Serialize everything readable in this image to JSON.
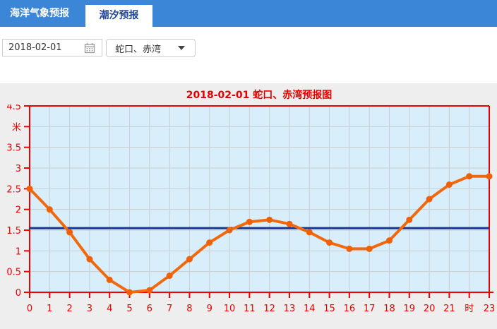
{
  "tabs": [
    {
      "label": "海洋气象预报",
      "active": false
    },
    {
      "label": "潮汐预报",
      "active": true
    }
  ],
  "controls": {
    "date_value": "2018-02-01",
    "station_value": "蛇口、赤湾"
  },
  "chart_data": {
    "type": "line",
    "title": "2018-02-01 蛇口、赤湾预报图",
    "xlabel": "时",
    "ylabel": "米",
    "x": [
      0,
      1,
      2,
      3,
      4,
      5,
      6,
      7,
      8,
      9,
      10,
      11,
      12,
      13,
      14,
      15,
      16,
      17,
      18,
      19,
      20,
      21,
      22,
      23
    ],
    "values": [
      2.5,
      2.0,
      1.45,
      0.8,
      0.3,
      0.0,
      0.05,
      0.4,
      0.8,
      1.2,
      1.5,
      1.7,
      1.75,
      1.65,
      1.45,
      1.2,
      1.05,
      1.05,
      1.25,
      1.75,
      2.25,
      2.6,
      2.8,
      2.8
    ],
    "x_tick_labels": [
      "0",
      "1",
      "2",
      "3",
      "4",
      "5",
      "6",
      "7",
      "8",
      "9",
      "10",
      "11",
      "12",
      "13",
      "14",
      "15",
      "16",
      "17",
      "18",
      "19",
      "20",
      "21",
      "时",
      "23"
    ],
    "y_tick_values": [
      0,
      0.5,
      1,
      1.5,
      2,
      2.5,
      3,
      3.5,
      4,
      4.5
    ],
    "y_tick_labels": [
      "0",
      "0.5",
      "1",
      "1.5",
      "2",
      "2.5",
      "3",
      "3.5",
      "米",
      "4.5"
    ],
    "ylim": [
      0,
      4.5
    ],
    "xlim": [
      0,
      23
    ],
    "grid": true,
    "legend": "none",
    "reference_line_value": 1.55,
    "line_color": "#f2690d",
    "marker_color": "#ef6108",
    "reference_line_color": "#15378d",
    "axis_color": "#ee0000",
    "label_color": "#ee0000",
    "plot_bg": "#d8eefa",
    "grid_color": "#c9ced3",
    "tabbar_color": "#3c86d8"
  }
}
